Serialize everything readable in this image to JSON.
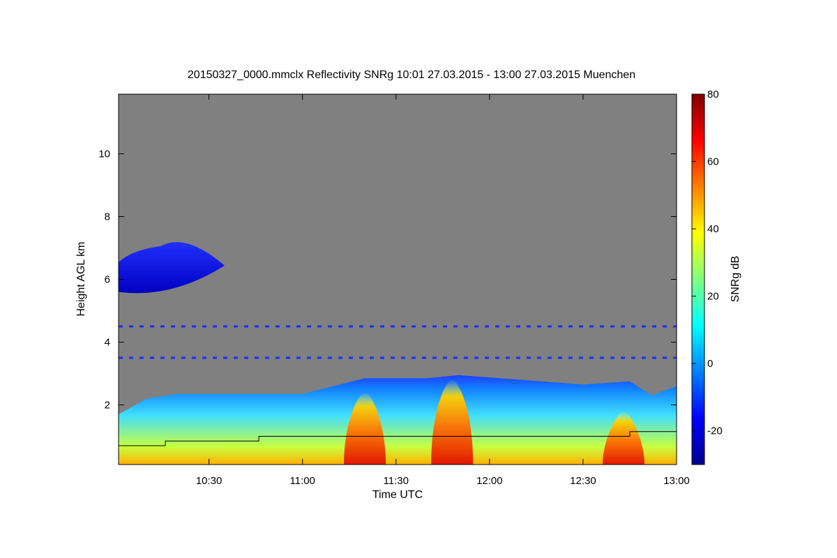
{
  "chart_data": {
    "type": "heatmap",
    "title": "20150327_0000.mmclx Reflectivity SNRg   10:01 27.03.2015 - 13:00 27.03.2015 Muenchen",
    "xlabel": "Time UTC",
    "ylabel": "Height AGL km",
    "colorbar_label": "SNRg dB",
    "x_range_utc": [
      "10:01",
      "13:00"
    ],
    "y_range_km": [
      0.1,
      11.9
    ],
    "x_ticks": [
      "10:30",
      "11:00",
      "11:30",
      "12:00",
      "12:30",
      "13:00"
    ],
    "y_ticks": [
      2,
      4,
      6,
      8,
      10
    ],
    "colorbar_range_db": [
      -30,
      80
    ],
    "colorbar_ticks": [
      -20,
      0,
      20,
      40,
      60,
      80
    ],
    "colormap": "jet",
    "background_color": "#808080",
    "features": {
      "boundary_layer_top_km": [
        {
          "time": "10:01",
          "top": 1.7
        },
        {
          "time": "10:10",
          "top": 2.2
        },
        {
          "time": "10:20",
          "top": 2.35
        },
        {
          "time": "11:00",
          "top": 2.35
        },
        {
          "time": "11:10",
          "top": 2.6
        },
        {
          "time": "11:20",
          "top": 2.85
        },
        {
          "time": "11:40",
          "top": 2.85
        },
        {
          "time": "11:50",
          "top": 2.95
        },
        {
          "time": "12:10",
          "top": 2.8
        },
        {
          "time": "12:30",
          "top": 2.65
        },
        {
          "time": "12:45",
          "top": 2.75
        },
        {
          "time": "12:52",
          "top": 2.3
        },
        {
          "time": "13:00",
          "top": 2.6
        }
      ],
      "step_line_km": [
        {
          "time": "10:01",
          "height": 0.7
        },
        {
          "time": "10:16",
          "height": 0.7
        },
        {
          "time": "10:16",
          "height": 0.85
        },
        {
          "time": "10:46",
          "height": 0.85
        },
        {
          "time": "10:46",
          "height": 1.0
        },
        {
          "time": "12:45",
          "height": 1.0
        },
        {
          "time": "12:45",
          "height": 1.15
        },
        {
          "time": "13:00",
          "height": 1.15
        }
      ],
      "high_reflectivity_cores": [
        {
          "time": "11:20",
          "top_km": 2.4,
          "max_db": 65
        },
        {
          "time": "11:48",
          "top_km": 2.8,
          "max_db": 70
        },
        {
          "time": "12:43",
          "top_km": 1.8,
          "max_db": 65
        }
      ],
      "upper_cloud_km": {
        "start": "10:01",
        "end": "10:35",
        "bottom": 5.6,
        "top": 7.5,
        "snr_db": -15
      },
      "noise_lines_km": [
        3.5,
        4.5
      ]
    }
  }
}
